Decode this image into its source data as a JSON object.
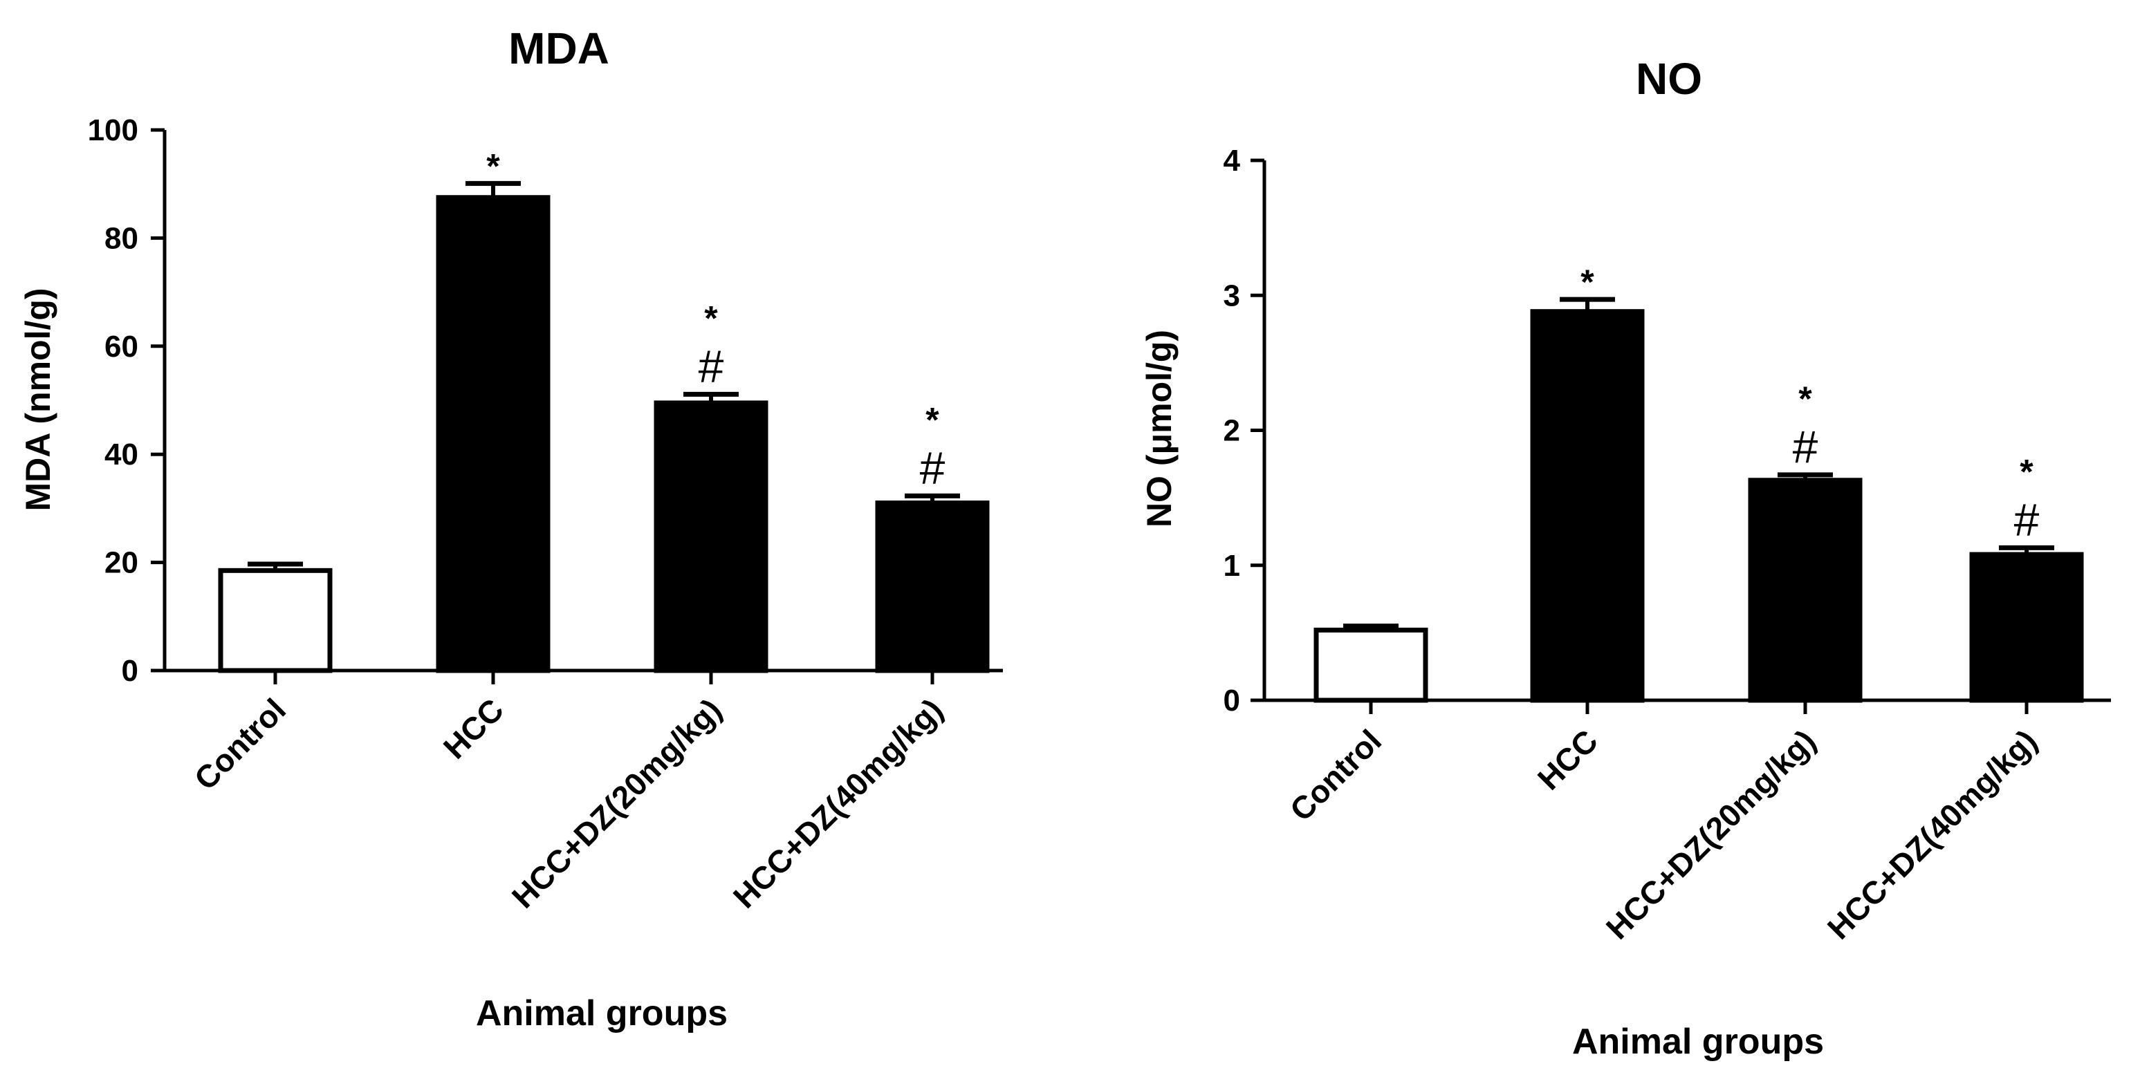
{
  "chart_data": [
    {
      "type": "bar",
      "title": "MDA",
      "xlabel": "Animal groups",
      "ylabel": "MDA (nmol/g)",
      "ylim": [
        0,
        100
      ],
      "yticks": [
        "0",
        "20",
        "40",
        "60",
        "80",
        "100"
      ],
      "categories": [
        "Control",
        "HCC",
        "HCC+DZ(20mg/kg)",
        "HCC+DZ(40mg/kg)"
      ],
      "values": [
        18.5,
        87.5,
        49.5,
        31
      ],
      "errors": [
        1.2,
        2.6,
        1.6,
        1.3
      ],
      "fills": [
        "#ffffff",
        "#000000",
        "#000000",
        "#000000"
      ],
      "significance": [
        [],
        [
          "*"
        ],
        [
          "*",
          "#"
        ],
        [
          "*",
          "#"
        ]
      ]
    },
    {
      "type": "bar",
      "title": "NO",
      "xlabel": "Animal groups",
      "ylabel": "NO (μmol/g)",
      "ylim": [
        0,
        4
      ],
      "yticks": [
        "0",
        "1",
        "2",
        "3",
        "4"
      ],
      "categories": [
        "Control",
        "HCC",
        "HCC+DZ(20mg/kg)",
        "HCC+DZ(40mg/kg)"
      ],
      "values": [
        0.52,
        2.88,
        1.63,
        1.08
      ],
      "errors": [
        0.03,
        0.09,
        0.04,
        0.05
      ],
      "fills": [
        "#ffffff",
        "#000000",
        "#000000",
        "#000000"
      ],
      "significance": [
        [],
        [
          "*"
        ],
        [
          "*",
          "#"
        ],
        [
          "*",
          "#"
        ]
      ]
    }
  ]
}
